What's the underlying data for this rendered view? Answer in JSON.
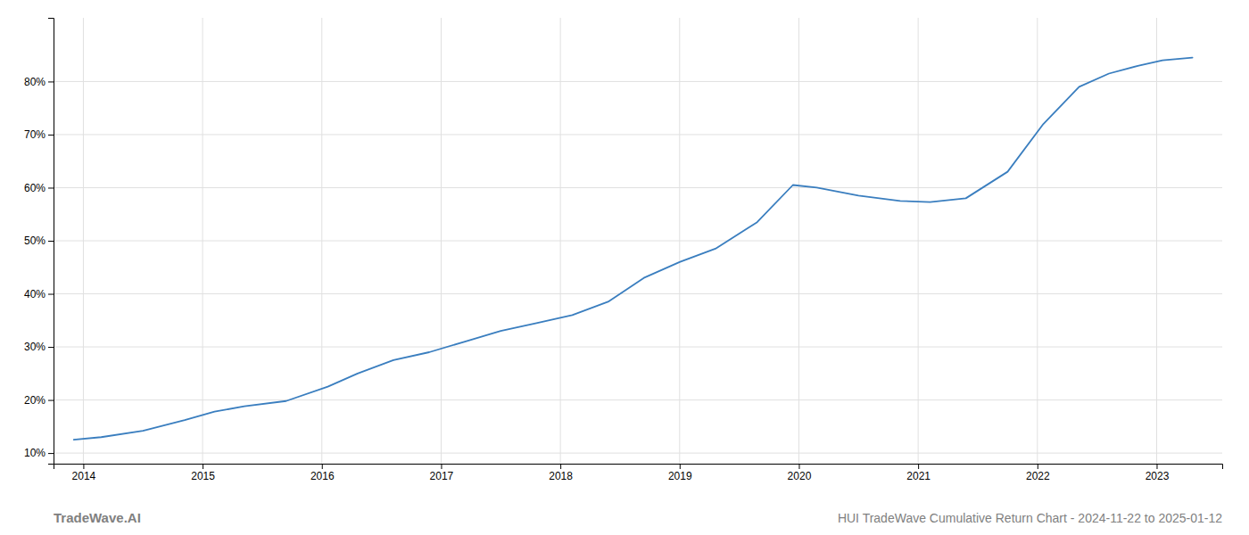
{
  "chart_data": {
    "type": "line",
    "title": "HUI TradeWave Cumulative Return Chart - 2024-11-22 to 2025-01-12",
    "annotations": [
      "TradeWave.AI"
    ],
    "x": [
      2013.92,
      2014.15,
      2014.5,
      2014.85,
      2015.1,
      2015.35,
      2015.7,
      2016.05,
      2016.3,
      2016.6,
      2016.9,
      2017.2,
      2017.5,
      2017.8,
      2018.1,
      2018.4,
      2018.7,
      2019.0,
      2019.3,
      2019.65,
      2019.95,
      2020.15,
      2020.5,
      2020.85,
      2021.1,
      2021.4,
      2021.75,
      2022.05,
      2022.35,
      2022.6,
      2022.85,
      2023.05,
      2023.3
    ],
    "values": [
      12.5,
      13.0,
      14.2,
      16.2,
      17.8,
      18.8,
      19.8,
      22.5,
      25.0,
      27.5,
      29.0,
      31.0,
      33.0,
      34.5,
      36.0,
      38.5,
      43.0,
      46.0,
      48.5,
      53.5,
      60.5,
      60.0,
      58.5,
      57.5,
      57.3,
      58.0,
      63.0,
      72.0,
      79.0,
      81.5,
      83.0,
      84.0,
      84.5
    ],
    "color": "#3a7ebf",
    "xlim": [
      2013.75,
      2023.55
    ],
    "xticks": [
      2014,
      2015,
      2016,
      2017,
      2018,
      2019,
      2020,
      2021,
      2022,
      2023
    ],
    "ylim": [
      8,
      92
    ],
    "yticks": [
      {
        "value": 10,
        "label": "10%"
      },
      {
        "value": 20,
        "label": "20%"
      },
      {
        "value": 30,
        "label": "30%"
      },
      {
        "value": 40,
        "label": "40%"
      },
      {
        "value": 50,
        "label": "50%"
      },
      {
        "value": 60,
        "label": "60%"
      },
      {
        "value": 70,
        "label": "70%"
      },
      {
        "value": 80,
        "label": "80%"
      }
    ],
    "grid": true
  }
}
